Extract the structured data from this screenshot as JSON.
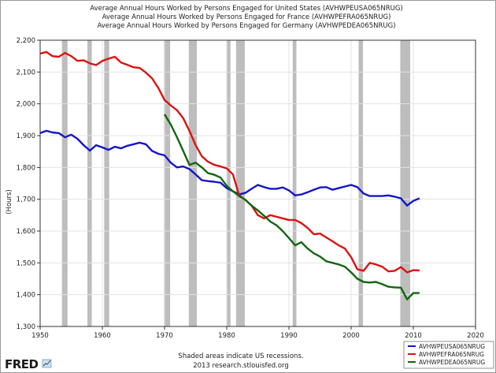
{
  "chart_data": {
    "type": "line",
    "title": [
      "Average Annual Hours Worked by Persons Engaged for United States (AVHWPEUSA065NRUG)",
      "Average Annual Hours Worked by Persons Engaged for France (AVHWPEFRA065NRUG)",
      "Average Annual Hours Worked by Persons Engaged for Germany (AVHWPEDEA065NRUG)"
    ],
    "xlabel": "",
    "ylabel": "(Hours)",
    "xlim": [
      1950,
      2020
    ],
    "ylim": [
      1300,
      2200
    ],
    "x_ticks": [
      "1950",
      "1960",
      "1970",
      "1980",
      "1990",
      "2000",
      "2010",
      "2020"
    ],
    "y_ticks": [
      "1,300",
      "1,400",
      "1,500",
      "1,600",
      "1,700",
      "1,800",
      "1,900",
      "2,000",
      "2,100",
      "2,200"
    ],
    "grid": true,
    "legend_position": "bottom-right",
    "recessions": [
      [
        1953.5,
        1954.4
      ],
      [
        1957.6,
        1958.3
      ],
      [
        1960.3,
        1961.1
      ],
      [
        1969.9,
        1970.9
      ],
      [
        1973.9,
        1975.2
      ],
      [
        1980.0,
        1980.6
      ],
      [
        1981.5,
        1982.9
      ],
      [
        1990.6,
        1991.2
      ],
      [
        2001.2,
        2001.9
      ],
      [
        2007.9,
        2009.5
      ]
    ],
    "series": [
      {
        "name": "AVHWPEUSA065NRUG",
        "color": "#1414cc",
        "x": [
          1950,
          1951,
          1952,
          1953,
          1954,
          1955,
          1956,
          1957,
          1958,
          1959,
          1960,
          1961,
          1962,
          1963,
          1964,
          1965,
          1966,
          1967,
          1968,
          1969,
          1970,
          1971,
          1972,
          1973,
          1974,
          1975,
          1976,
          1977,
          1978,
          1979,
          1980,
          1981,
          1982,
          1983,
          1984,
          1985,
          1986,
          1987,
          1988,
          1989,
          1990,
          1991,
          1992,
          1993,
          1994,
          1995,
          1996,
          1997,
          1998,
          1999,
          2000,
          2001,
          2002,
          2003,
          2004,
          2005,
          2006,
          2007,
          2008,
          2009,
          2010,
          2011
        ],
        "values": [
          1908,
          1915,
          1910,
          1908,
          1895,
          1903,
          1890,
          1870,
          1853,
          1870,
          1863,
          1855,
          1865,
          1860,
          1868,
          1873,
          1878,
          1873,
          1852,
          1843,
          1838,
          1815,
          1800,
          1803,
          1795,
          1778,
          1760,
          1757,
          1755,
          1752,
          1735,
          1725,
          1715,
          1720,
          1733,
          1745,
          1738,
          1733,
          1733,
          1737,
          1728,
          1712,
          1715,
          1722,
          1730,
          1737,
          1738,
          1730,
          1735,
          1740,
          1745,
          1738,
          1718,
          1710,
          1710,
          1710,
          1712,
          1708,
          1703,
          1680,
          1695,
          1703
        ]
      },
      {
        "name": "AVHWPEFRA065NRUG",
        "color": "#dd1111",
        "x": [
          1950,
          1951,
          1952,
          1953,
          1954,
          1955,
          1956,
          1957,
          1958,
          1959,
          1960,
          1961,
          1962,
          1963,
          1964,
          1965,
          1966,
          1967,
          1968,
          1969,
          1970,
          1971,
          1972,
          1973,
          1974,
          1975,
          1976,
          1977,
          1978,
          1979,
          1980,
          1981,
          1982,
          1983,
          1984,
          1985,
          1986,
          1987,
          1988,
          1989,
          1990,
          1991,
          1992,
          1993,
          1994,
          1995,
          1996,
          1997,
          1998,
          1999,
          2000,
          2001,
          2002,
          2003,
          2004,
          2005,
          2006,
          2007,
          2008,
          2009,
          2010,
          2011
        ],
        "values": [
          2158,
          2163,
          2150,
          2148,
          2160,
          2150,
          2135,
          2137,
          2127,
          2122,
          2135,
          2142,
          2148,
          2130,
          2123,
          2115,
          2113,
          2098,
          2080,
          2050,
          2012,
          1995,
          1980,
          1955,
          1915,
          1870,
          1835,
          1818,
          1808,
          1803,
          1797,
          1778,
          1712,
          1698,
          1680,
          1650,
          1640,
          1650,
          1645,
          1640,
          1635,
          1635,
          1625,
          1610,
          1590,
          1592,
          1580,
          1568,
          1555,
          1545,
          1518,
          1480,
          1475,
          1500,
          1495,
          1488,
          1473,
          1475,
          1487,
          1470,
          1477,
          1476
        ]
      },
      {
        "name": "AVHWPEDEA065NRUG",
        "color": "#116611",
        "x": [
          1970,
          1971,
          1972,
          1973,
          1974,
          1975,
          1976,
          1977,
          1978,
          1979,
          1980,
          1981,
          1982,
          1983,
          1984,
          1985,
          1986,
          1987,
          1988,
          1989,
          1990,
          1991,
          1992,
          1993,
          1994,
          1995,
          1996,
          1997,
          1998,
          1999,
          2000,
          2001,
          2002,
          2003,
          2004,
          2005,
          2006,
          2007,
          2008,
          2009,
          2010,
          2011
        ],
        "values": [
          1967,
          1935,
          1895,
          1852,
          1808,
          1815,
          1800,
          1782,
          1777,
          1768,
          1742,
          1725,
          1710,
          1698,
          1680,
          1665,
          1648,
          1630,
          1618,
          1600,
          1578,
          1555,
          1565,
          1545,
          1530,
          1520,
          1505,
          1500,
          1495,
          1488,
          1470,
          1450,
          1440,
          1438,
          1440,
          1433,
          1425,
          1423,
          1422,
          1385,
          1405,
          1405
        ]
      }
    ],
    "notes": [
      "Shaded areas indicate US recessions.",
      "2013 research.stlouisfed.org"
    ],
    "brand": "FRED"
  }
}
